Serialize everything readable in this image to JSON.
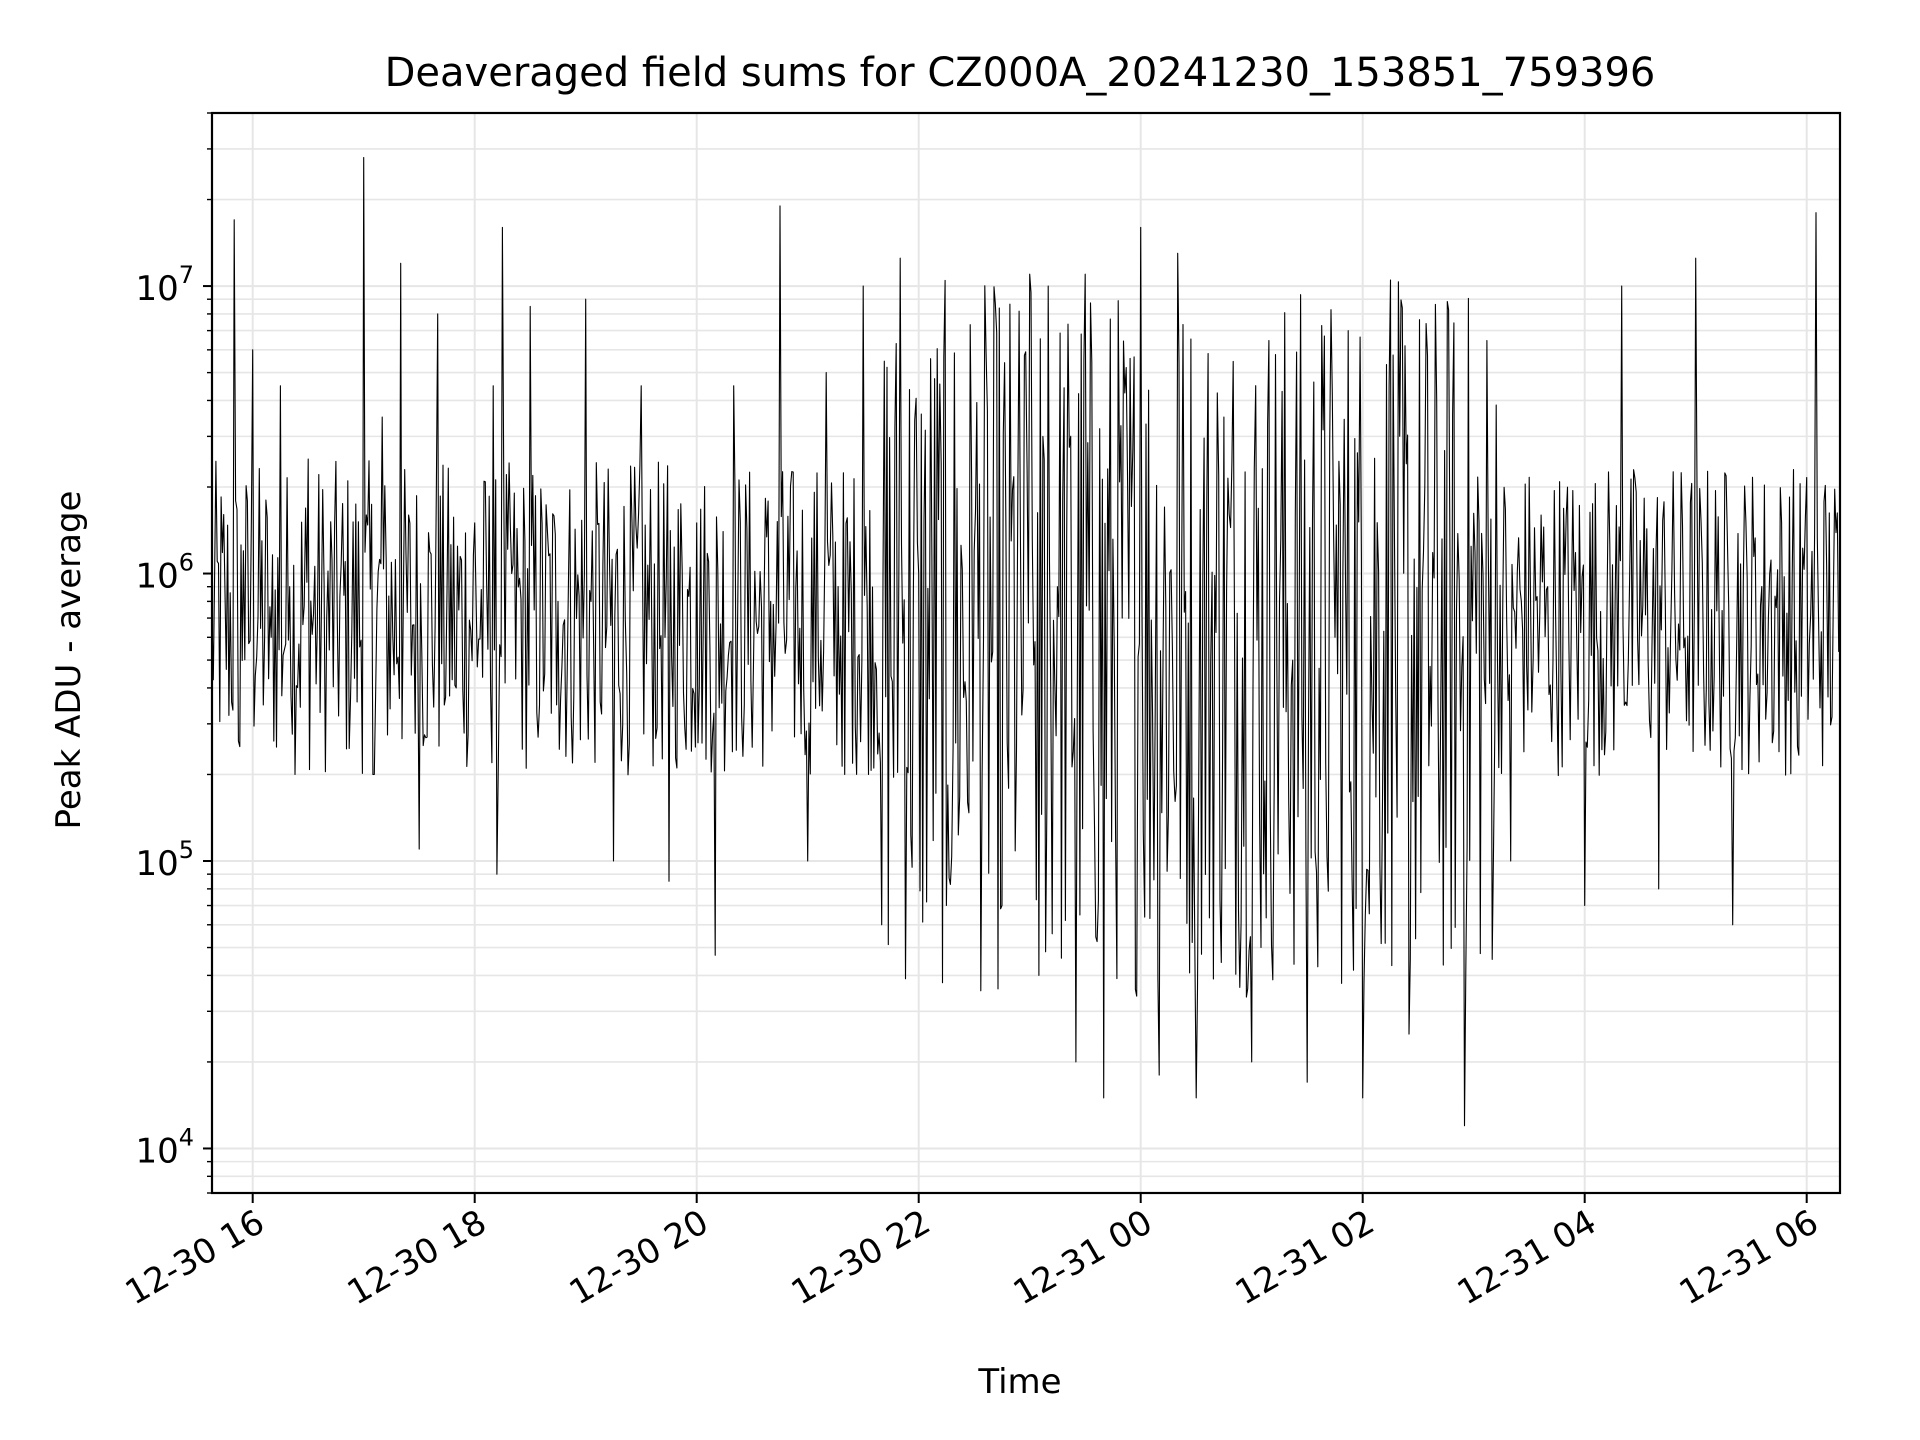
{
  "chart_data": {
    "type": "line",
    "title": "Deaveraged field sums for CZ000A_20241230_153851_759396",
    "xlabel": "Time",
    "ylabel": "Peak ADU - average",
    "yscale": "log",
    "ylim": [
      7000,
      40000000
    ],
    "xlim": [
      "2024-12-30 15:38",
      "2024-12-31 06:18"
    ],
    "grid": true,
    "line_color": "#000000",
    "x_ticks": [
      {
        "label": "12-30 16",
        "value": "2024-12-30 16:00"
      },
      {
        "label": "12-30 18",
        "value": "2024-12-30 18:00"
      },
      {
        "label": "12-30 20",
        "value": "2024-12-30 20:00"
      },
      {
        "label": "12-30 22",
        "value": "2024-12-30 22:00"
      },
      {
        "label": "12-31 00",
        "value": "2024-12-31 00:00"
      },
      {
        "label": "12-31 02",
        "value": "2024-12-31 02:00"
      },
      {
        "label": "12-31 04",
        "value": "2024-12-31 04:00"
      },
      {
        "label": "12-31 06",
        "value": "2024-12-31 06:00"
      }
    ],
    "y_ticks": [
      {
        "base": "10",
        "exp": "4",
        "value": 10000
      },
      {
        "base": "10",
        "exp": "5",
        "value": 100000
      },
      {
        "base": "10",
        "exp": "6",
        "value": 1000000
      },
      {
        "base": "10",
        "exp": "7",
        "value": 10000000
      }
    ],
    "series": [
      {
        "x": [
          "2024-12-30 15:38",
          "2024-12-30 15:45",
          "2024-12-30 15:50",
          "2024-12-30 15:53",
          "2024-12-30 15:55",
          "2024-12-30 16:00",
          "2024-12-30 16:05",
          "2024-12-30 16:10",
          "2024-12-30 16:15",
          "2024-12-30 16:20",
          "2024-12-30 16:30",
          "2024-12-30 16:40",
          "2024-12-30 16:50",
          "2024-12-30 17:00",
          "2024-12-30 17:05",
          "2024-12-30 17:10",
          "2024-12-30 17:20",
          "2024-12-30 17:30",
          "2024-12-30 17:40",
          "2024-12-30 17:50",
          "2024-12-30 18:00",
          "2024-12-30 18:10",
          "2024-12-30 18:12",
          "2024-12-30 18:15",
          "2024-12-30 18:20",
          "2024-12-30 18:30",
          "2024-12-30 18:45",
          "2024-12-30 19:00",
          "2024-12-30 19:15",
          "2024-12-30 19:30",
          "2024-12-30 19:45",
          "2024-12-30 20:00",
          "2024-12-30 20:10",
          "2024-12-30 20:20",
          "2024-12-30 20:40",
          "2024-12-30 20:45",
          "2024-12-30 21:00",
          "2024-12-30 21:10",
          "2024-12-30 21:20",
          "2024-12-30 21:30",
          "2024-12-30 21:40",
          "2024-12-30 21:50",
          "2024-12-30 22:00",
          "2024-12-30 22:15",
          "2024-12-30 22:30",
          "2024-12-30 22:45",
          "2024-12-30 23:00",
          "2024-12-30 23:05",
          "2024-12-30 23:10",
          "2024-12-30 23:15",
          "2024-12-30 23:25",
          "2024-12-30 23:30",
          "2024-12-30 23:40",
          "2024-12-30 23:50",
          "2024-12-31 00:00",
          "2024-12-31 00:10",
          "2024-12-31 00:20",
          "2024-12-31 00:30",
          "2024-12-31 00:45",
          "2024-12-31 01:00",
          "2024-12-31 01:15",
          "2024-12-31 01:30",
          "2024-12-31 01:45",
          "2024-12-31 02:00",
          "2024-12-31 02:15",
          "2024-12-31 02:25",
          "2024-12-31 02:40",
          "2024-12-31 02:55",
          "2024-12-31 03:05",
          "2024-12-31 03:20",
          "2024-12-31 03:40",
          "2024-12-31 04:00",
          "2024-12-31 04:20",
          "2024-12-31 04:40",
          "2024-12-31 05:00",
          "2024-12-31 05:20",
          "2024-12-31 05:40",
          "2024-12-31 05:55",
          "2024-12-31 06:05",
          "2024-12-31 06:18"
        ],
        "y": [
          700000,
          900000,
          17000000,
          250000,
          1200000,
          6000000,
          1300000,
          600000,
          4500000,
          900000,
          2500000,
          700000,
          1100000,
          28000000,
          200000,
          3500000,
          12000000,
          110000,
          8000000,
          400000,
          1500000,
          4500000,
          90000,
          16000000,
          1000000,
          8500000,
          800000,
          9000000,
          100000,
          4500000,
          85000,
          1500000,
          47000,
          4500000,
          800000,
          19000000,
          100000,
          5000000,
          200000,
          10000000,
          60000,
          12500000,
          1000000,
          70000,
          1200000,
          70000,
          11000000,
          40000,
          10000000,
          900000,
          20000,
          11000000,
          15000,
          700000,
          16000000,
          18000,
          13000000,
          15000,
          3500000,
          20000,
          800000,
          17000,
          600000,
          15000,
          10500000,
          25000,
          4000000,
          12000,
          1000000,
          100000,
          900000,
          70000,
          10000000,
          80000,
          12500000,
          60000,
          1000000,
          250000,
          18000000,
          700000
        ]
      }
    ]
  }
}
